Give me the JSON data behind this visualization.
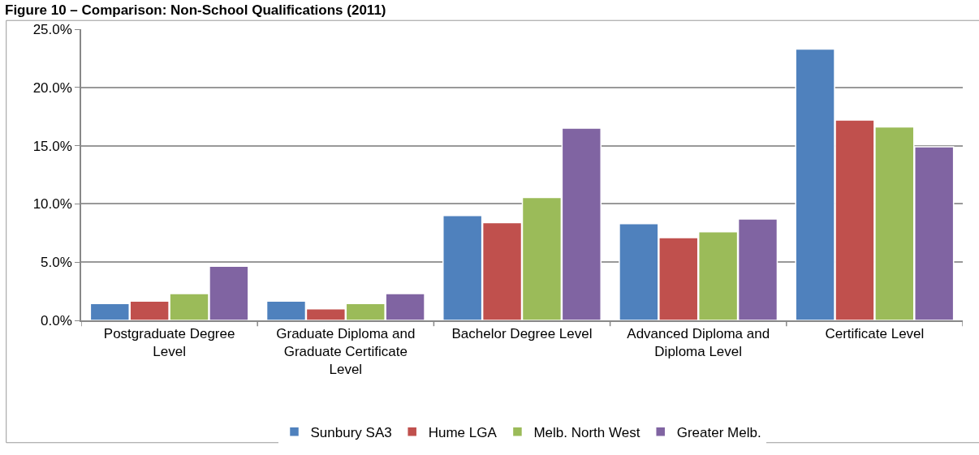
{
  "chart_data": {
    "type": "bar",
    "title": "Figure 10 – Comparison: Non-School Qualifications (2011)",
    "categories": [
      "Postgraduate Degree Level",
      "Graduate Diploma and Graduate Certificate Level",
      "Bachelor Degree Level",
      "Advanced Diploma and Diploma Level",
      "Certificate Level"
    ],
    "series": [
      {
        "name": "Sunbury SA3",
        "color": "#4f81bd",
        "values": [
          1.45,
          1.65,
          9.0,
          8.3,
          23.3
        ]
      },
      {
        "name": "Hume LGA",
        "color": "#c0504d",
        "values": [
          1.65,
          1.0,
          8.4,
          7.1,
          17.2
        ]
      },
      {
        "name": "Melb. North West",
        "color": "#9bbb59",
        "values": [
          2.3,
          1.45,
          10.55,
          7.6,
          16.6
        ]
      },
      {
        "name": "Greater Melb.",
        "color": "#8064a2",
        "values": [
          4.65,
          2.3,
          16.5,
          8.7,
          14.9
        ]
      }
    ],
    "ylim": [
      0,
      25
    ],
    "yticks": [
      {
        "value": 0,
        "label": "0.0%"
      },
      {
        "value": 5,
        "label": "5.0%"
      },
      {
        "value": 10,
        "label": "10.0%"
      },
      {
        "value": 15,
        "label": "15.0%"
      },
      {
        "value": 20,
        "label": "20.0%"
      },
      {
        "value": 25,
        "label": "25.0%"
      }
    ],
    "grid": "y",
    "legend": "bottom"
  }
}
